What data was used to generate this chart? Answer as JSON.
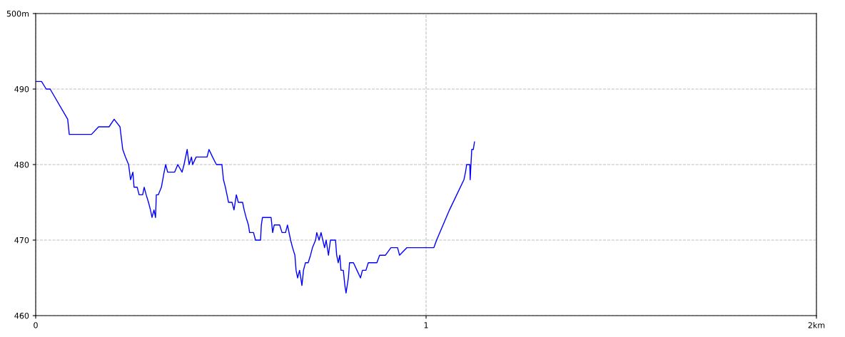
{
  "chart_data": {
    "type": "line",
    "xlim": [
      0,
      2
    ],
    "ylim": [
      460,
      500
    ],
    "xticks": [
      0,
      1,
      {
        "value": 2,
        "label": "2km"
      }
    ],
    "yticks": [
      460,
      470,
      480,
      490,
      {
        "value": 500,
        "label": "500m"
      }
    ],
    "grid": true,
    "line_style": "solid",
    "marker": "none",
    "series": [
      {
        "color": "#0000ff",
        "x": [
          0,
          0.015,
          0.027,
          0.037,
          0.082,
          0.086,
          0.143,
          0.161,
          0.188,
          0.201,
          0.216,
          0.223,
          0.23,
          0.238,
          0.243,
          0.249,
          0.252,
          0.26,
          0.265,
          0.274,
          0.278,
          0.283,
          0.289,
          0.294,
          0.298,
          0.303,
          0.307,
          0.309,
          0.314,
          0.322,
          0.329,
          0.333,
          0.338,
          0.356,
          0.364,
          0.375,
          0.38,
          0.388,
          0.393,
          0.399,
          0.402,
          0.411,
          0.439,
          0.444,
          0.453,
          0.463,
          0.468,
          0.477,
          0.481,
          0.486,
          0.49,
          0.494,
          0.503,
          0.508,
          0.514,
          0.519,
          0.53,
          0.534,
          0.539,
          0.545,
          0.548,
          0.558,
          0.563,
          0.576,
          0.578,
          0.581,
          0.594,
          0.603,
          0.607,
          0.611,
          0.625,
          0.631,
          0.64,
          0.645,
          0.653,
          0.658,
          0.664,
          0.667,
          0.671,
          0.676,
          0.682,
          0.686,
          0.691,
          0.698,
          0.704,
          0.709,
          0.717,
          0.72,
          0.726,
          0.731,
          0.74,
          0.744,
          0.75,
          0.755,
          0.759,
          0.768,
          0.771,
          0.775,
          0.779,
          0.782,
          0.788,
          0.792,
          0.795,
          0.801,
          0.804,
          0.814,
          0.823,
          0.832,
          0.837,
          0.846,
          0.852,
          0.874,
          0.881,
          0.896,
          0.91,
          0.927,
          0.932,
          0.951,
          1.02,
          1.027,
          1.06,
          1.097,
          1.101,
          1.104,
          1.112,
          1.113,
          1.117,
          1.121,
          1.124
        ],
        "values": [
          491,
          491,
          490,
          490,
          486,
          484,
          484,
          485,
          485,
          486,
          485,
          482,
          481,
          480,
          478,
          479,
          477,
          477,
          476,
          476,
          477,
          476,
          475,
          474,
          473,
          474,
          473,
          476,
          476,
          477,
          479,
          480,
          479,
          479,
          480,
          479,
          480,
          482,
          480,
          481,
          480,
          481,
          481,
          482,
          481,
          480,
          480,
          480,
          478,
          477,
          476,
          475,
          475,
          474,
          476,
          475,
          475,
          474,
          473,
          472,
          471,
          471,
          470,
          470,
          472,
          473,
          473,
          473,
          471,
          472,
          472,
          471,
          471,
          472,
          470,
          469,
          468,
          466,
          465,
          466,
          464,
          466,
          467,
          467,
          468,
          469,
          470,
          471,
          470,
          471,
          469,
          470,
          468,
          470,
          470,
          470,
          468,
          467,
          468,
          466,
          466,
          464,
          463,
          465,
          467,
          467,
          466,
          465,
          466,
          466,
          467,
          467,
          468,
          468,
          469,
          469,
          468,
          469,
          469,
          470,
          474,
          478,
          479,
          480,
          480,
          478,
          482,
          482,
          483
        ]
      }
    ]
  }
}
